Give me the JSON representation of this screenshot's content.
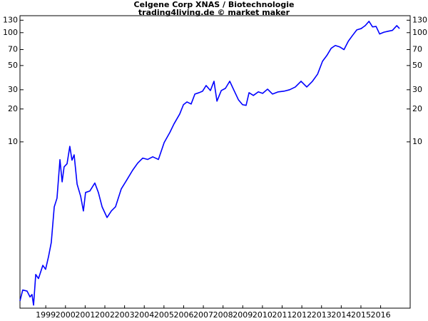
{
  "chart_data": {
    "type": "line",
    "title": "Celgene Corp XNAS / Biotechnologie",
    "subtitle": "trading4living.de © market maker",
    "log_scale": true,
    "color": "#0000ff",
    "x": [
      1998.19,
      1998.33,
      1998.55,
      1998.7,
      1998.8,
      1998.88,
      1998.99,
      1999.13,
      1999.35,
      1999.49,
      1999.64,
      1999.78,
      1999.93,
      2000.07,
      2000.22,
      2000.33,
      2000.43,
      2000.58,
      2000.72,
      2000.83,
      2000.94,
      2001.09,
      2001.27,
      2001.41,
      2001.52,
      2001.74,
      2001.99,
      2002.17,
      2002.36,
      2002.61,
      2002.83,
      2003.04,
      2003.33,
      2003.62,
      2003.91,
      2004.17,
      2004.42,
      2004.67,
      2004.93,
      2005.22,
      2005.51,
      2005.8,
      2006.01,
      2006.3,
      2006.49,
      2006.67,
      2006.88,
      2007.07,
      2007.28,
      2007.46,
      2007.64,
      2007.86,
      2008.04,
      2008.19,
      2008.41,
      2008.62,
      2008.84,
      2009.06,
      2009.28,
      2009.49,
      2009.67,
      2009.82,
      2010.04,
      2010.29,
      2010.51,
      2010.76,
      2011.01,
      2011.3,
      2011.59,
      2011.88,
      2012.17,
      2012.46,
      2012.75,
      2013.04,
      2013.3,
      2013.55,
      2013.77,
      2013.99,
      2014.2,
      2014.42,
      2014.64,
      2014.86,
      2015.07,
      2015.29,
      2015.51,
      2015.72,
      2015.91,
      2016.09,
      2016.27,
      2016.45,
      2016.67,
      2016.88,
      2017.1,
      2017.32,
      2017.46
    ],
    "values": [
      0.35,
      0.44,
      0.43,
      0.38,
      0.4,
      0.32,
      0.61,
      0.56,
      0.74,
      0.68,
      0.89,
      1.2,
      2.54,
      3.05,
      6.87,
      4.3,
      5.9,
      6.3,
      9.1,
      6.8,
      7.6,
      4.1,
      3.18,
      2.33,
      3.44,
      3.55,
      4.2,
      3.44,
      2.54,
      2.03,
      2.33,
      2.54,
      3.7,
      4.5,
      5.5,
      6.4,
      7.1,
      6.9,
      7.3,
      6.9,
      9.85,
      12.2,
      14.6,
      18.0,
      21.9,
      23.2,
      22.2,
      27.4,
      28.2,
      29.1,
      32.8,
      29.5,
      35.9,
      23.6,
      29.5,
      30.9,
      35.9,
      29.5,
      24.3,
      21.9,
      21.6,
      28.2,
      26.6,
      28.7,
      27.8,
      30.4,
      27.4,
      28.7,
      29.1,
      30.0,
      31.8,
      35.9,
      31.8,
      35.9,
      41.7,
      54.7,
      61.8,
      71.9,
      76.3,
      74.1,
      69.9,
      83.5,
      94.1,
      106,
      109,
      116,
      127,
      113,
      114,
      97.2,
      101,
      103,
      105,
      116,
      109
    ],
    "xlim": [
      1998.19,
      2018.0
    ],
    "xticks": [
      {
        "value": 1999.5,
        "label": "1999"
      },
      {
        "value": 2000.5,
        "label": "2000"
      },
      {
        "value": 2001.5,
        "label": "2001"
      },
      {
        "value": 2002.5,
        "label": "2002"
      },
      {
        "value": 2003.5,
        "label": "2003"
      },
      {
        "value": 2004.5,
        "label": "2004"
      },
      {
        "value": 2005.5,
        "label": "2005"
      },
      {
        "value": 2006.5,
        "label": "2006"
      },
      {
        "value": 2007.5,
        "label": "2007"
      },
      {
        "value": 2008.5,
        "label": "2008"
      },
      {
        "value": 2009.5,
        "label": "2009"
      },
      {
        "value": 2010.5,
        "label": "2010"
      },
      {
        "value": 2011.5,
        "label": "2011"
      },
      {
        "value": 2012.5,
        "label": "2012"
      },
      {
        "value": 2013.5,
        "label": "2013"
      },
      {
        "value": 2014.5,
        "label": "2014"
      },
      {
        "value": 2015.5,
        "label": "2015"
      },
      {
        "value": 2016.5,
        "label": "2016"
      }
    ],
    "ylim": [
      0.3,
      143
    ],
    "yticks": [
      10,
      20,
      30,
      50,
      70,
      100,
      130
    ],
    "y2lim": [
      0.3,
      143
    ],
    "y2ticks": [
      10,
      20,
      30,
      50,
      70,
      100,
      130
    ]
  }
}
